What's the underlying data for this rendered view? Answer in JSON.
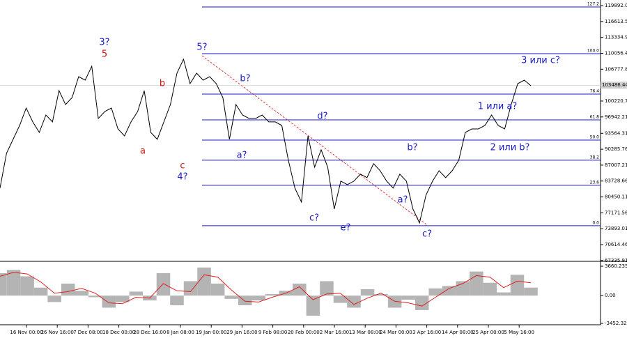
{
  "chart_data": [
    {
      "type": "line",
      "color": "#000000",
      "values": [
        82269,
        89449,
        92321,
        95193,
        98783,
        95913,
        93757,
        97347,
        95913,
        102373,
        99501,
        100937,
        105245,
        104527,
        107399,
        96629,
        98065,
        98783,
        94475,
        93039,
        95913,
        98065,
        102373,
        93757,
        92321,
        95913,
        99501,
        105963,
        108835,
        103809,
        105963,
        104527,
        105245,
        103809,
        100937,
        92321,
        99501,
        97347,
        96629,
        96629,
        97347,
        95913,
        95913,
        95193,
        88013,
        82269,
        79397,
        93039,
        86577,
        90167,
        86577,
        77961,
        83705,
        82987,
        83705,
        85141,
        84423,
        87297,
        85861,
        83705,
        82269,
        85141,
        83705,
        77961,
        75089,
        80833,
        83705,
        85861,
        84423,
        85861,
        88013,
        93757,
        94475,
        94475,
        95193,
        97347,
        95193,
        94475,
        99501,
        103809,
        104527,
        103377
      ],
      "ylim": [
        67600,
        121050
      ],
      "yticks": [
        119892.05,
        116613.51,
        113334.96,
        110056.41,
        106777.86,
        100220.76,
        96942.21,
        93564.31,
        90285.76,
        87007.21,
        83728.66,
        80450.11,
        77171.56,
        73893.01,
        70614.46,
        67335.91
      ],
      "current_price": 103486.44,
      "time_labels": [
        "16 Nov 00:00",
        "26 Nov 16:00",
        "7 Dec 08:00",
        "18 Dec 00:00",
        "28 Dec 16:00",
        "8 Jan 08:00",
        "19 Jan 00:00",
        "29 Jan 16:00",
        "9 Feb 08:00",
        "20 Feb 00:00",
        "2 Mar 16:00",
        "13 Mar 08:00",
        "24 Mar 00:00",
        "3 Apr 16:00",
        "14 Apr 08:00",
        "25 Apr 00:00",
        "5 May 16:00"
      ],
      "fib_color": "#1a1acc",
      "fib_levels": [
        {
          "label": "127.2",
          "value": 119605
        },
        {
          "label": "100.0",
          "value": 109984
        },
        {
          "label": "76.4",
          "value": 101655
        },
        {
          "label": "61.8",
          "value": 96342
        },
        {
          "label": "50.0",
          "value": 92177
        },
        {
          "label": "38.2",
          "value": 88013
        },
        {
          "label": "23.6",
          "value": 82843
        },
        {
          "label": "0.0",
          "value": 74515
        }
      ],
      "wave_labels": [
        {
          "text": "3?",
          "color": "#1a1acc"
        },
        {
          "text": "5",
          "color": "#cc1010"
        },
        {
          "text": "b",
          "color": "#cc1010"
        },
        {
          "text": "a",
          "color": "#cc1010"
        },
        {
          "text": "c",
          "color": "#cc1010"
        },
        {
          "text": "4?",
          "color": "#1a1acc"
        },
        {
          "text": "5?",
          "color": "#1a1acc"
        },
        {
          "text": "b?",
          "color": "#1a1acc"
        },
        {
          "text": "a?",
          "color": "#1a1acc"
        },
        {
          "text": "d?",
          "color": "#1a1acc"
        },
        {
          "text": "c?",
          "color": "#1a1acc"
        },
        {
          "text": "e?",
          "color": "#1a1acc"
        },
        {
          "text": "b?",
          "color": "#1a1acc"
        },
        {
          "text": "a?",
          "color": "#1a1acc"
        },
        {
          "text": "c?",
          "color": "#1a1acc"
        },
        {
          "text": "1 или a?",
          "color": "#1a1acc"
        },
        {
          "text": "2 или b?",
          "color": "#1a1acc"
        },
        {
          "text": "3 или c?",
          "color": "#1a1acc"
        }
      ]
    },
    {
      "type": "bar",
      "color": "#b4b4b4",
      "signal_color": "#e02020",
      "values": [
        2800,
        3200,
        2400,
        1000,
        -800,
        1500,
        600,
        -200,
        -1500,
        -800,
        500,
        -600,
        2800,
        -1200,
        1800,
        3500,
        1500,
        -400,
        -1200,
        -600,
        200,
        600,
        1500,
        -2500,
        1800,
        -900,
        -1500,
        800,
        200,
        -1500,
        -500,
        -1800,
        900,
        1200,
        1800,
        3000,
        1600,
        400,
        2600,
        1000
      ],
      "signal": [
        2400,
        2900,
        2700,
        1700,
        300,
        500,
        900,
        300,
        -900,
        -1000,
        -200,
        -300,
        1500,
        600,
        500,
        2600,
        2300,
        700,
        -700,
        -800,
        -200,
        300,
        1100,
        -500,
        200,
        300,
        -1100,
        -300,
        300,
        -700,
        -900,
        -1300,
        -200,
        900,
        1500,
        2500,
        2300,
        1000,
        1800,
        1600
      ],
      "ylim": [
        -3626,
        4007
      ],
      "yticks": [
        3660.235,
        {
          "value": 0,
          "label": "0.00"
        },
        -3452.32
      ]
    }
  ]
}
